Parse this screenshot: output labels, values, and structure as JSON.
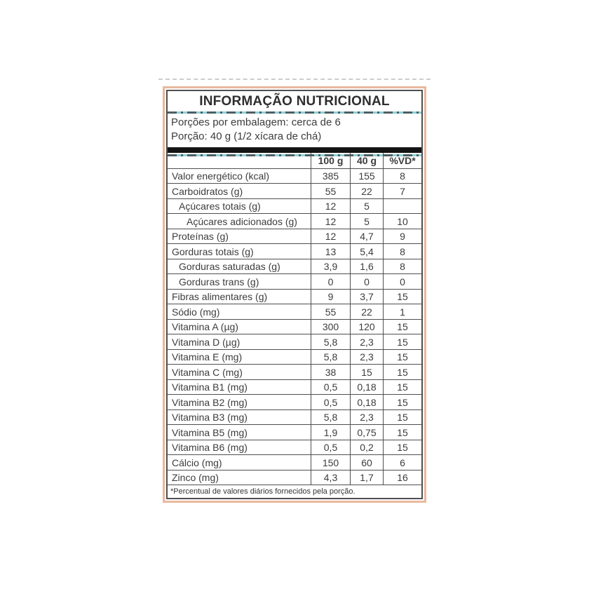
{
  "label": {
    "title": "INFORMAÇÃO NUTRICIONAL",
    "servings_line": "Porções por embalagem: cerca de 6",
    "portion_line": "Porção: 40 g (1/2 xícara de chá)",
    "columns": [
      "100 g",
      "40 g",
      "%VD*"
    ],
    "rows": [
      {
        "name": "Valor energético (kcal)",
        "indent": 0,
        "v100": "385",
        "v40": "155",
        "vd": "8"
      },
      {
        "name": "Carboidratos (g)",
        "indent": 0,
        "v100": "55",
        "v40": "22",
        "vd": "7"
      },
      {
        "name": "Açúcares totais (g)",
        "indent": 1,
        "v100": "12",
        "v40": "5",
        "vd": ""
      },
      {
        "name": "Açúcares adicionados (g)",
        "indent": 2,
        "v100": "12",
        "v40": "5",
        "vd": "10"
      },
      {
        "name": "Proteínas (g)",
        "indent": 0,
        "v100": "12",
        "v40": "4,7",
        "vd": "9"
      },
      {
        "name": "Gorduras totais (g)",
        "indent": 0,
        "v100": "13",
        "v40": "5,4",
        "vd": "8"
      },
      {
        "name": "Gorduras saturadas (g)",
        "indent": 1,
        "v100": "3,9",
        "v40": "1,6",
        "vd": "8"
      },
      {
        "name": "Gorduras trans (g)",
        "indent": 1,
        "v100": "0",
        "v40": "0",
        "vd": "0"
      },
      {
        "name": "Fibras alimentares (g)",
        "indent": 0,
        "v100": "9",
        "v40": "3,7",
        "vd": "15"
      },
      {
        "name": "Sódio (mg)",
        "indent": 0,
        "v100": "55",
        "v40": "22",
        "vd": "1"
      },
      {
        "name": "Vitamina A (µg)",
        "indent": 0,
        "v100": "300",
        "v40": "120",
        "vd": "15"
      },
      {
        "name": "Vitamina D (µg)",
        "indent": 0,
        "v100": "5,8",
        "v40": "2,3",
        "vd": "15"
      },
      {
        "name": "Vitamina E (mg)",
        "indent": 0,
        "v100": "5,8",
        "v40": "2,3",
        "vd": "15"
      },
      {
        "name": "Vitamina C (mg)",
        "indent": 0,
        "v100": "38",
        "v40": "15",
        "vd": "15"
      },
      {
        "name": "Vitamina B1 (mg)",
        "indent": 0,
        "v100": "0,5",
        "v40": "0,18",
        "vd": "15"
      },
      {
        "name": "Vitamina B2 (mg)",
        "indent": 0,
        "v100": "0,5",
        "v40": "0,18",
        "vd": "15"
      },
      {
        "name": "Vitamina B3 (mg)",
        "indent": 0,
        "v100": "5,8",
        "v40": "2,3",
        "vd": "15"
      },
      {
        "name": "Vitamina B5 (mg)",
        "indent": 0,
        "v100": "1,9",
        "v40": "0,75",
        "vd": "15"
      },
      {
        "name": "Vitamina B6 (mg)",
        "indent": 0,
        "v100": "0,5",
        "v40": "0,2",
        "vd": "15"
      },
      {
        "name": "Cálcio (mg)",
        "indent": 0,
        "v100": "150",
        "v40": "60",
        "vd": "6"
      },
      {
        "name": "Zinco (mg)",
        "indent": 0,
        "v100": "4,3",
        "v40": "1,7",
        "vd": "16"
      }
    ],
    "footnote": "*Percentual de valores diários fornecidos pela porção.",
    "colors": {
      "salmon": "#e9b89e",
      "teal": "#8ed1d7",
      "teal-dash": "#4e5f63",
      "ink": "#3c3c3c",
      "grid": "#4f4f4f",
      "bar": "#141414",
      "faint": "#cccccc",
      "bg": "#ffffff"
    }
  }
}
